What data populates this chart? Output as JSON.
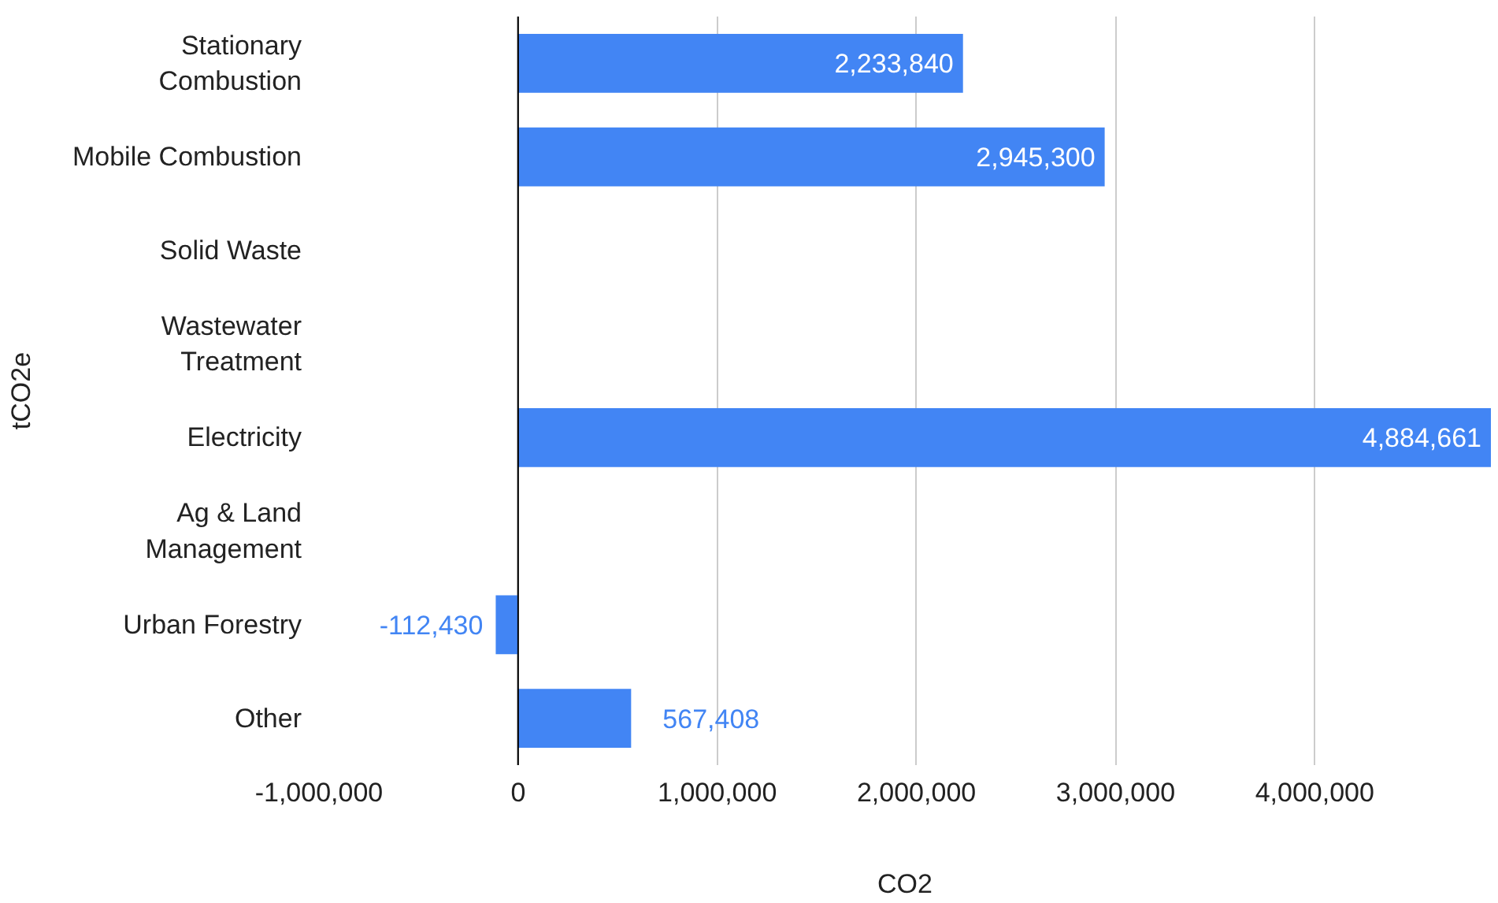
{
  "chart_data": {
    "type": "bar",
    "orientation": "horizontal",
    "xlabel": "CO2",
    "ylabel": "tCO2e",
    "categories": [
      "Stationary Combustion",
      "Mobile Combustion",
      "Solid Waste",
      "Wastewater Treatment",
      "Electricity",
      "Ag & Land Management",
      "Urban Forestry",
      "Other"
    ],
    "values": [
      2233840,
      2945300,
      null,
      null,
      4884661,
      null,
      -112430,
      567408
    ],
    "color": "#4285f4",
    "grid": "x",
    "value_labels": [
      "2,233,840",
      "2,945,300",
      null,
      null,
      "4,884,661",
      null,
      "-112,430",
      "567,408"
    ],
    "xlim": [
      -1000000,
      4884661
    ],
    "xticks": [
      {
        "value": -1000000,
        "label": "-1,000,000"
      },
      0,
      {
        "value": 1000000,
        "label": "1,000,000"
      },
      {
        "value": 2000000,
        "label": "2,000,000"
      },
      {
        "value": 3000000,
        "label": "3,000,000"
      },
      {
        "value": 4000000,
        "label": "4,000,000"
      }
    ]
  }
}
